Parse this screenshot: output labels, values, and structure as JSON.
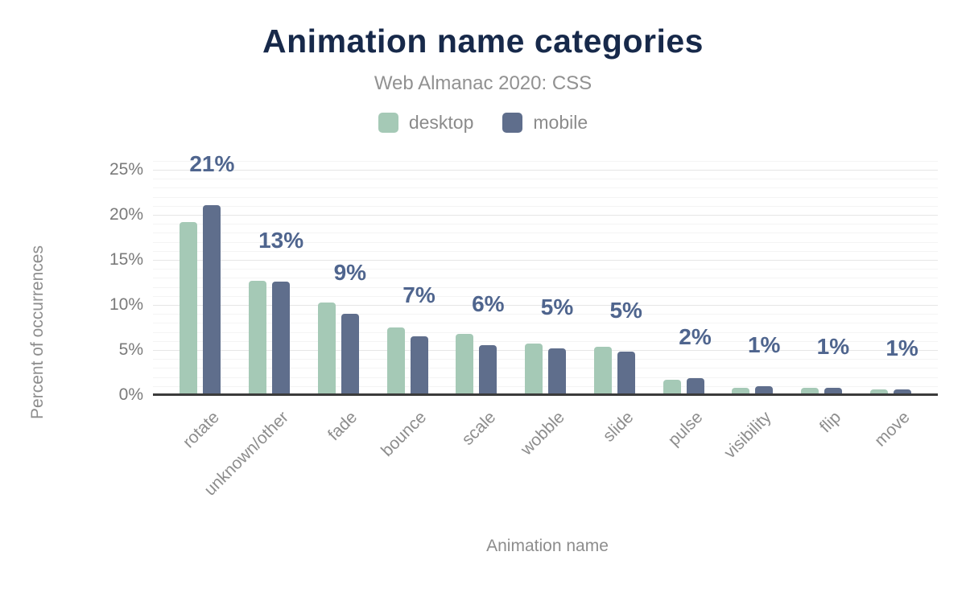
{
  "chart_data": {
    "type": "bar",
    "title": "Animation name categories",
    "subtitle": "Web Almanac 2020: CSS",
    "xlabel": "Animation name",
    "ylabel": "Percent of occurrences",
    "categories": [
      "rotate",
      "unknown/other",
      "fade",
      "bounce",
      "scale",
      "wobble",
      "slide",
      "pulse",
      "visibility",
      "flip",
      "move"
    ],
    "series": [
      {
        "name": "desktop",
        "color": "#a5c9b6",
        "values": [
          19.2,
          12.7,
          10.3,
          7.5,
          6.8,
          5.7,
          5.4,
          1.7,
          0.8,
          0.8,
          0.6
        ]
      },
      {
        "name": "mobile",
        "color": "#5f6e8c",
        "values": [
          21.1,
          12.6,
          9.0,
          6.5,
          5.5,
          5.2,
          4.8,
          1.9,
          1.0,
          0.8,
          0.6
        ]
      }
    ],
    "value_labels": [
      "21%",
      "13%",
      "9%",
      "7%",
      "6%",
      "5%",
      "5%",
      "2%",
      "1%",
      "1%",
      "1%"
    ],
    "y_ticks": [
      0,
      5,
      10,
      15,
      20,
      25
    ],
    "y_tick_labels": [
      "0%",
      "5%",
      "10%",
      "15%",
      "20%",
      "25%"
    ],
    "ylim": [
      0,
      26
    ],
    "grid": true,
    "legend_position": "top",
    "colors": {
      "title": "#17294a",
      "subtitle": "#919191",
      "axis_title": "#8d8d8d",
      "tick_label": "#7a7a7a",
      "value_label": "#4f658e",
      "axis_line": "#3b3b3b",
      "gridline_major": "#e6e6e6",
      "gridline_minor": "#f4f4f4",
      "background": "#ffffff"
    }
  }
}
